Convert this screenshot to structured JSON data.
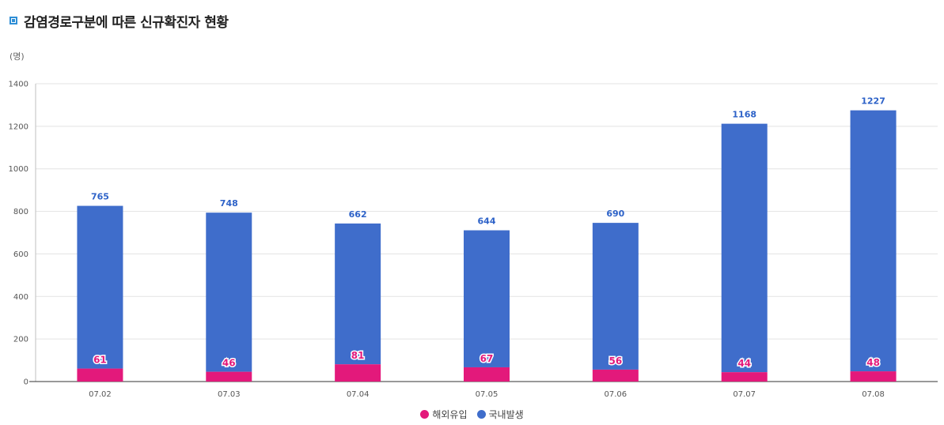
{
  "header": {
    "title": "감염경로구분에 따른 신규확진자 현황",
    "unit": "(명)"
  },
  "colors": {
    "overseas": "#e3197b",
    "domestic": "#3f6dcb",
    "title_icon": "#2f8fd6"
  },
  "chart_data": {
    "type": "bar",
    "stacked": true,
    "title": "감염경로구분에 따른 신규확진자 현황",
    "ylabel": "(명)",
    "ylim": [
      0,
      1400
    ],
    "yticks": [
      0,
      200,
      400,
      600,
      800,
      1000,
      1200,
      1400
    ],
    "grid": true,
    "legend_position": "bottom",
    "categories": [
      "07.02",
      "07.03",
      "07.04",
      "07.05",
      "07.06",
      "07.07",
      "07.08"
    ],
    "series": [
      {
        "name": "해외유입",
        "values": [
          61,
          46,
          81,
          67,
          56,
          44,
          48
        ]
      },
      {
        "name": "국내발생",
        "values": [
          765,
          748,
          662,
          644,
          690,
          1168,
          1227
        ]
      }
    ]
  }
}
